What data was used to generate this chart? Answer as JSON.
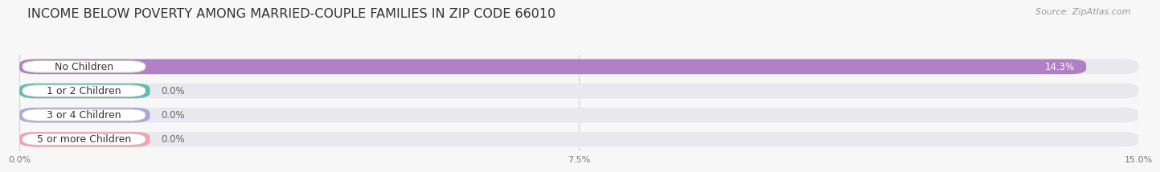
{
  "title": "INCOME BELOW POVERTY AMONG MARRIED-COUPLE FAMILIES IN ZIP CODE 66010",
  "source": "Source: ZipAtlas.com",
  "categories": [
    "No Children",
    "1 or 2 Children",
    "3 or 4 Children",
    "5 or more Children"
  ],
  "values": [
    14.3,
    0.0,
    0.0,
    0.0
  ],
  "bar_colors": [
    "#b07fc4",
    "#5bbcb0",
    "#a9a8d8",
    "#f4a0b0"
  ],
  "bar_bg_color": "#e8e8ee",
  "zero_bar_colors": [
    "#5bbcb0",
    "#a9a8d8",
    "#f4a0b0"
  ],
  "zero_bar_width": 1.8,
  "label_bg_color": "#ffffff",
  "xlim": [
    0,
    15.0
  ],
  "xticks": [
    0.0,
    7.5,
    15.0
  ],
  "xtick_labels": [
    "0.0%",
    "7.5%",
    "15.0%"
  ],
  "bar_height": 0.62,
  "title_fontsize": 11.5,
  "label_fontsize": 9,
  "value_fontsize": 8.5,
  "source_fontsize": 8,
  "background_color": "#f7f7f7",
  "grid_color": "#d0d0d0",
  "value_label_inside_color": "#ffffff",
  "value_label_outside_color": "#666666"
}
